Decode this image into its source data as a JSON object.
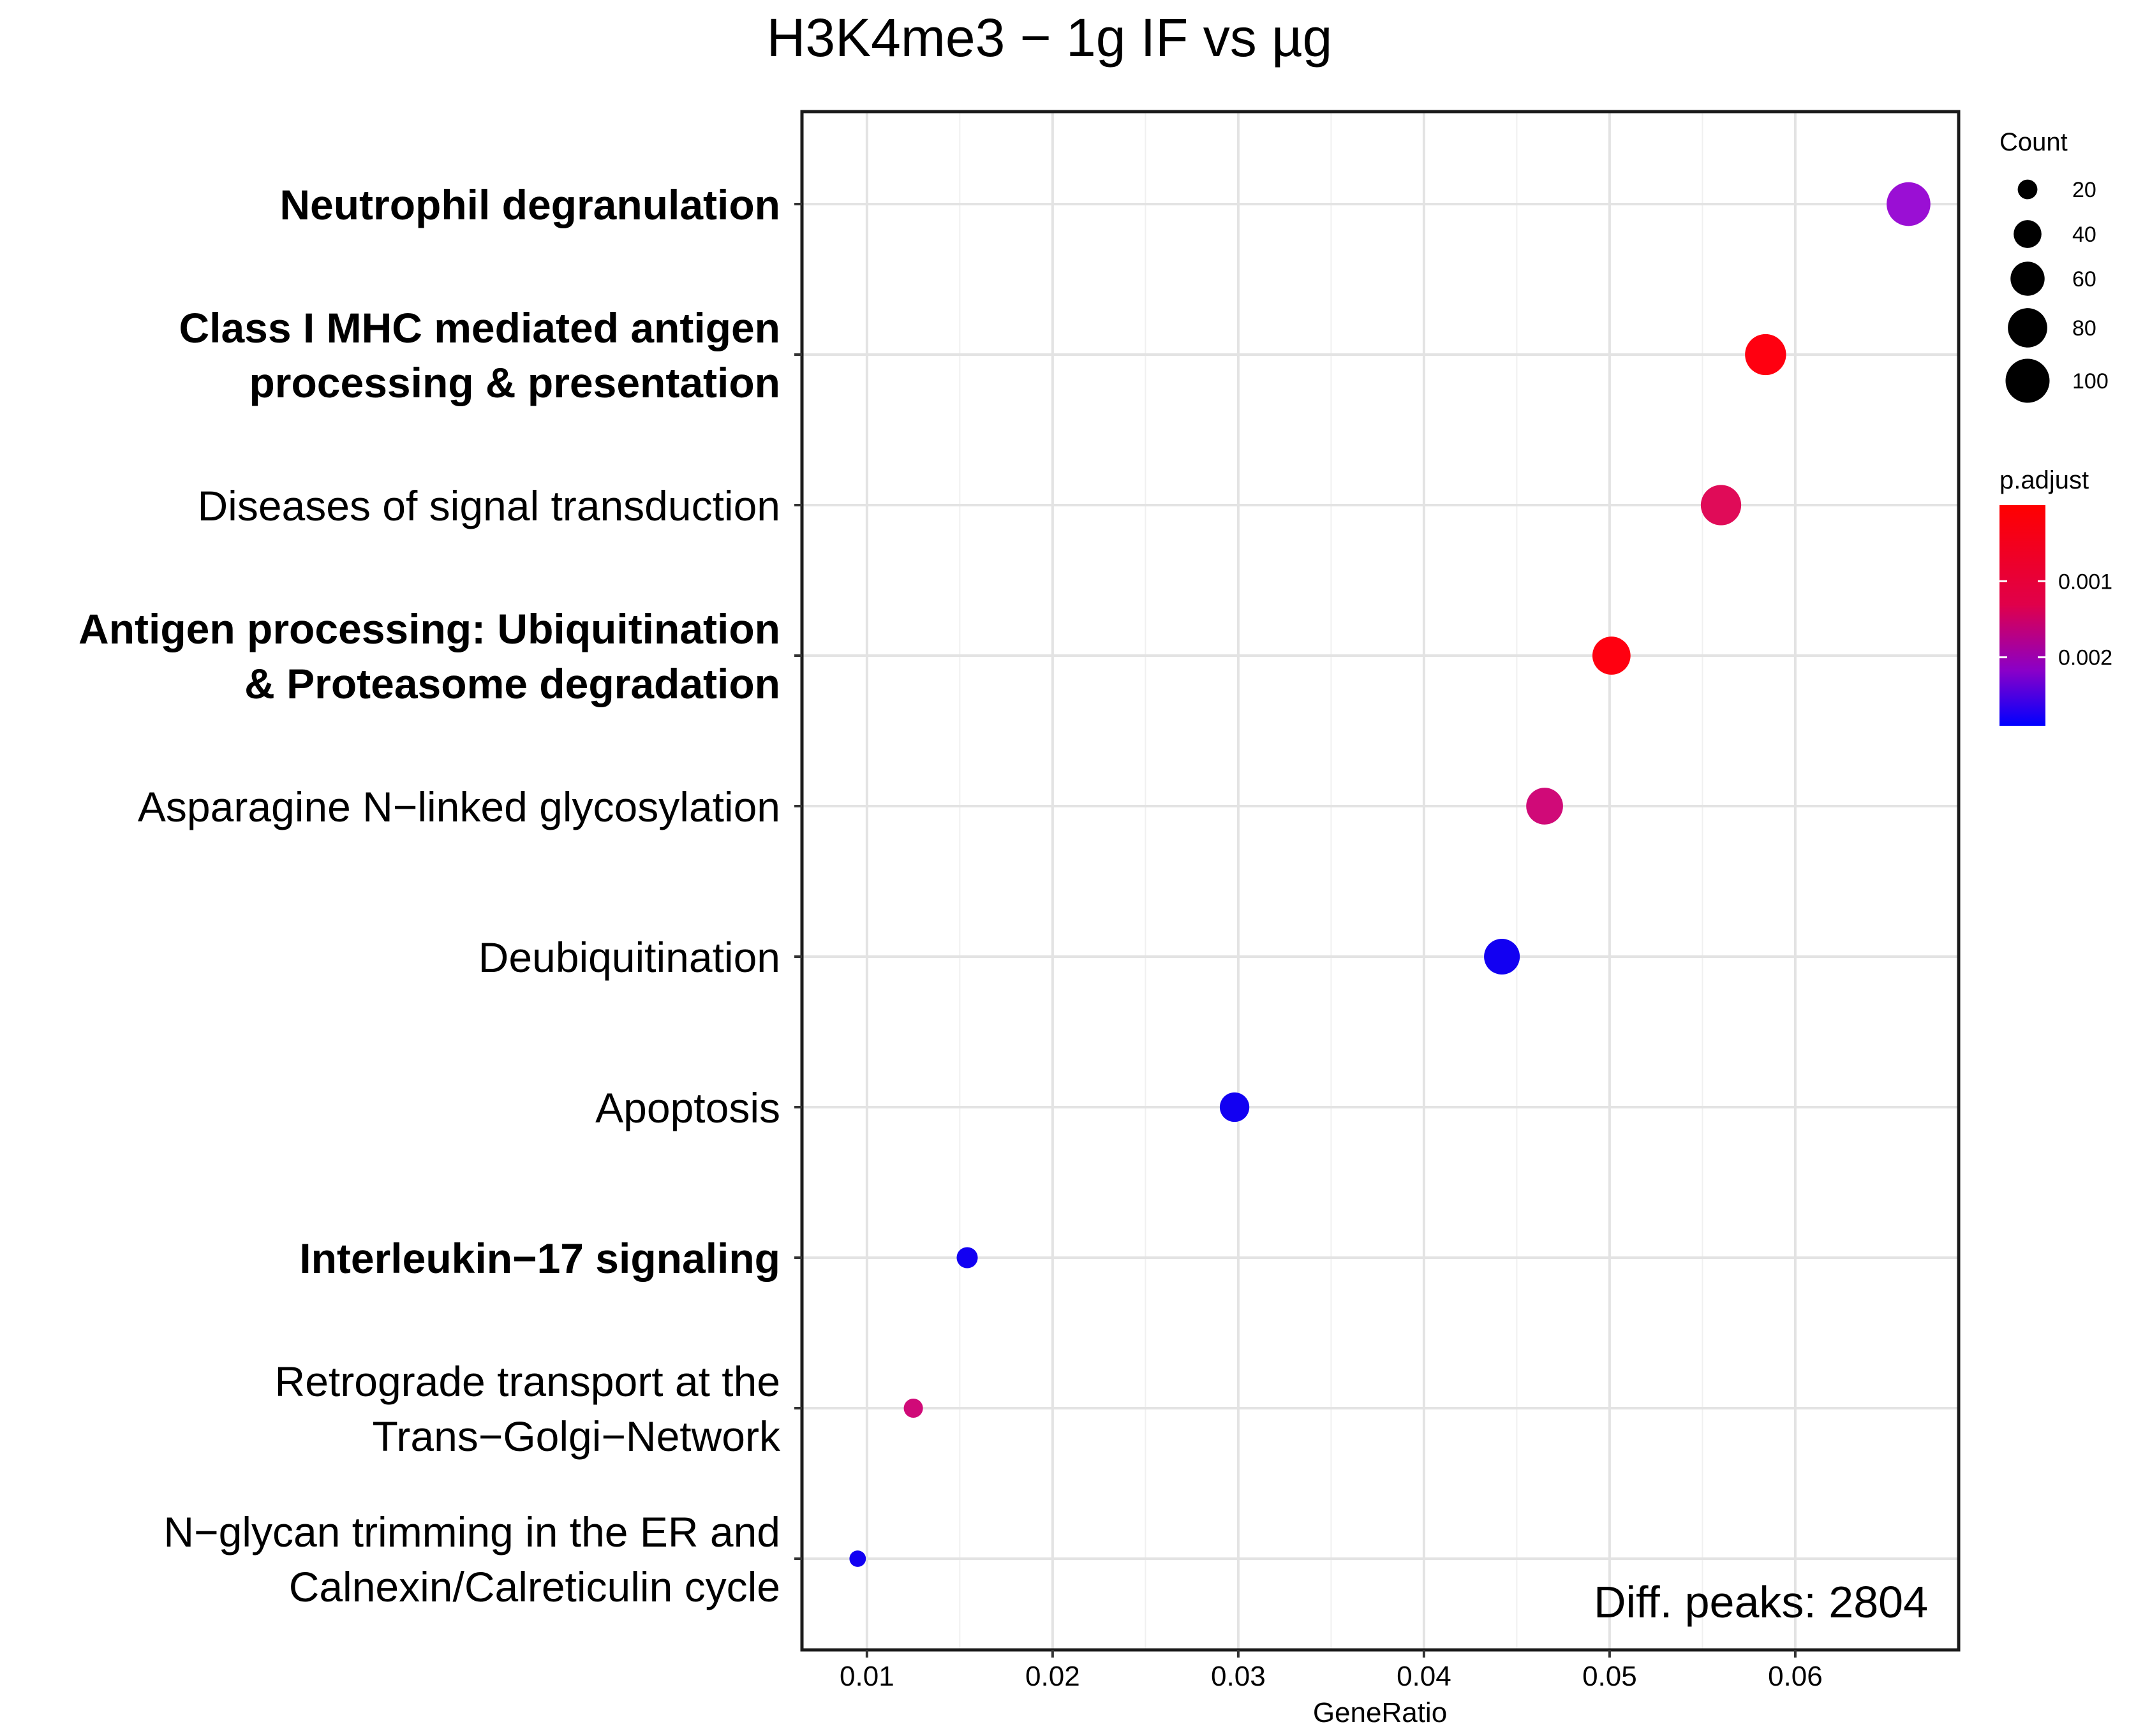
{
  "chart_data": {
    "type": "scatter",
    "title": "H3K4me3 − 1g IF vs µg",
    "xlabel": "GeneRatio",
    "ylabel": "",
    "xlim": [
      0.0065,
      0.0688
    ],
    "x_ticks": [
      0.01,
      0.02,
      0.03,
      0.04,
      0.05,
      0.06
    ],
    "x_tick_labels": [
      "0.01",
      "0.02",
      "0.03",
      "0.04",
      "0.05",
      "0.06"
    ],
    "grid": true,
    "annotation": "Diff. peaks: 2804",
    "categories": [
      {
        "lines": [
          "Neutrophil degranulation"
        ],
        "bold": true
      },
      {
        "lines": [
          "Class I MHC mediated antigen",
          "processing & presentation"
        ],
        "bold": true
      },
      {
        "lines": [
          "Diseases of signal transduction"
        ],
        "bold": false
      },
      {
        "lines": [
          "Antigen processing: Ubiquitination",
          "& Proteasome degradation"
        ],
        "bold": true
      },
      {
        "lines": [
          "Asparagine N−linked glycosylation"
        ],
        "bold": false
      },
      {
        "lines": [
          "Deubiquitination"
        ],
        "bold": false
      },
      {
        "lines": [
          "Apoptosis"
        ],
        "bold": false
      },
      {
        "lines": [
          "Interleukin−17 signaling"
        ],
        "bold": true
      },
      {
        "lines": [
          "Retrograde transport at the",
          "Trans−Golgi−Network"
        ],
        "bold": false
      },
      {
        "lines": [
          "N−glycan trimming in the ER and",
          "Calnexin/Calreticulin cycle"
        ],
        "bold": false
      }
    ],
    "series": [
      {
        "name": "pathways",
        "points": [
          {
            "x": 0.0661,
            "count": 99,
            "p_adjust": 0.0021,
            "color": "#9a0fd4"
          },
          {
            "x": 0.0584,
            "count": 87,
            "p_adjust": 0.0001,
            "color": "#ff0010"
          },
          {
            "x": 0.056,
            "count": 84,
            "p_adjust": 0.0006,
            "color": "#e00b58"
          },
          {
            "x": 0.0501,
            "count": 75,
            "p_adjust": 5e-05,
            "color": "#ff0010"
          },
          {
            "x": 0.0465,
            "count": 70,
            "p_adjust": 0.0012,
            "color": "#d00a78"
          },
          {
            "x": 0.0442,
            "count": 66,
            "p_adjust": 0.0029,
            "color": "#1200f2"
          },
          {
            "x": 0.0298,
            "count": 45,
            "p_adjust": 0.0029,
            "color": "#1200f2"
          },
          {
            "x": 0.0154,
            "count": 23,
            "p_adjust": 0.0029,
            "color": "#1200f2"
          },
          {
            "x": 0.0125,
            "count": 19,
            "p_adjust": 0.0012,
            "color": "#d00a78"
          },
          {
            "x": 0.0095,
            "count": 14,
            "p_adjust": 0.0029,
            "color": "#1200f2"
          }
        ]
      }
    ],
    "size_legend": {
      "title": "Count",
      "values": [
        20,
        40,
        60,
        80,
        100
      ],
      "labels": [
        "20",
        "40",
        "60",
        "80",
        "100"
      ]
    },
    "color_legend": {
      "title": "p.adjust",
      "range": [
        0.0,
        0.0029
      ],
      "ticks": [
        0.001,
        0.002
      ],
      "tick_labels": [
        "0.001",
        "0.002"
      ],
      "low_color": "#ff0000",
      "high_color": "#0000ff"
    }
  }
}
